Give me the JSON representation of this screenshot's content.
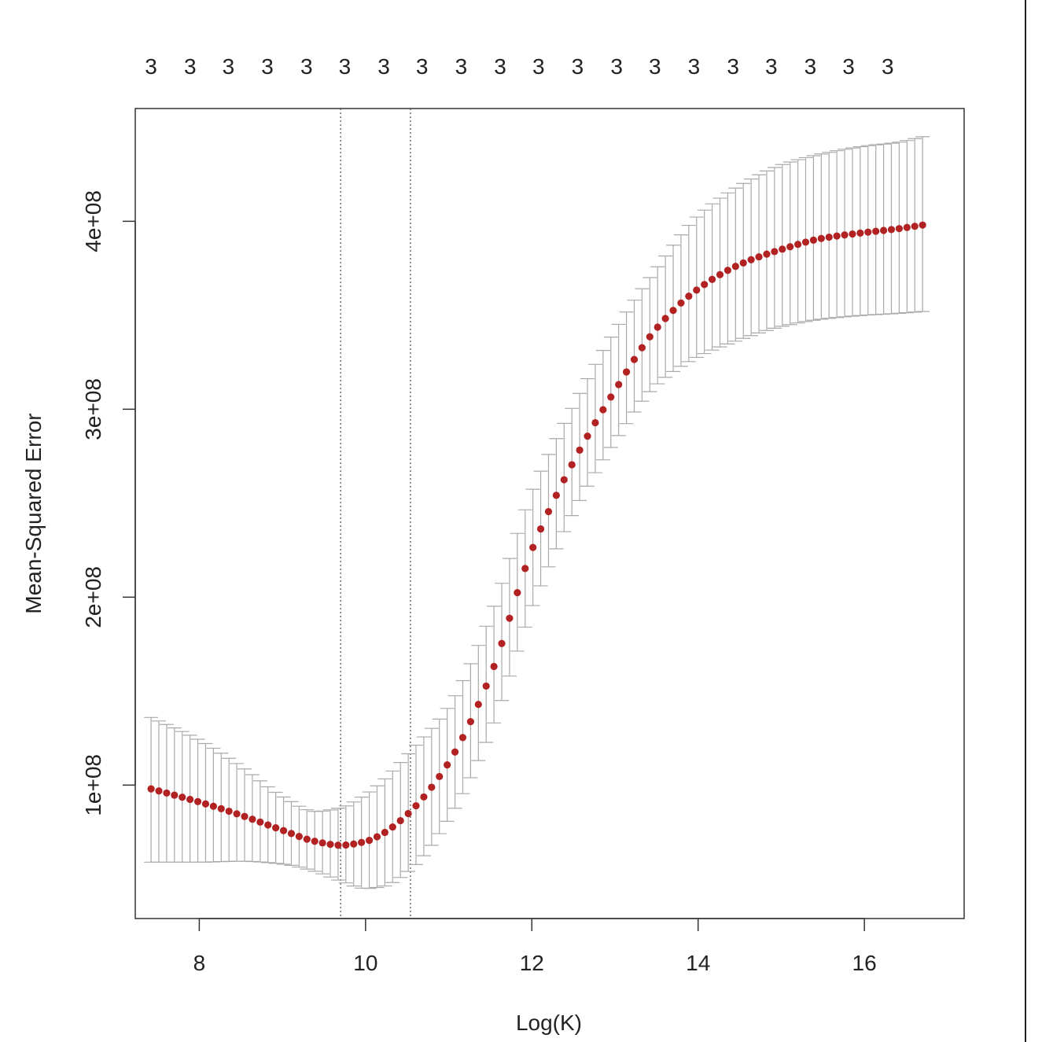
{
  "chart_data": {
    "type": "scatter",
    "title": "",
    "xlabel": "Log(K)",
    "ylabel": "Mean-Squared Error",
    "xlim": [
      7.23,
      17.2
    ],
    "ylim": [
      29000000,
      460000000
    ],
    "x_ticks": [
      8,
      10,
      12,
      14,
      16
    ],
    "x_tick_labels": [
      "8",
      "10",
      "12",
      "14",
      "16"
    ],
    "y_ticks": [
      100000000,
      200000000,
      300000000,
      400000000
    ],
    "y_tick_labels": [
      "1e+08",
      "2e+08",
      "3e+08",
      "4e+08"
    ],
    "top_labels": [
      "3",
      "3",
      "3",
      "3",
      "3",
      "3",
      "3",
      "3",
      "3",
      "3",
      "3",
      "3",
      "3",
      "3",
      "3",
      "3",
      "3",
      "3",
      "3",
      "3"
    ],
    "top_label_x": [
      7.42,
      7.89,
      8.35,
      8.82,
      9.29,
      9.75,
      10.22,
      10.68,
      11.15,
      11.62,
      12.08,
      12.55,
      13.02,
      13.48,
      13.95,
      14.42,
      14.88,
      15.35,
      15.81,
      16.28
    ],
    "vlines": [
      9.7,
      10.54
    ],
    "point_color": "#b22222",
    "errorbar_color": "#a9a9a9",
    "curve_knots": [
      {
        "x": 7.42,
        "mse": 98000000,
        "lo": 59000000,
        "hi": 136000000
      },
      {
        "x": 8.0,
        "mse": 91000000,
        "lo": 59000000,
        "hi": 124000000
      },
      {
        "x": 8.5,
        "mse": 84000000,
        "lo": 59500000,
        "hi": 110000000
      },
      {
        "x": 9.0,
        "mse": 76000000,
        "lo": 58000000,
        "hi": 94000000
      },
      {
        "x": 9.4,
        "mse": 70000000,
        "lo": 54000000,
        "hi": 86000000
      },
      {
        "x": 9.7,
        "mse": 68000000,
        "lo": 49000000,
        "hi": 88000000
      },
      {
        "x": 10.0,
        "mse": 70000000,
        "lo": 45000000,
        "hi": 95000000
      },
      {
        "x": 10.2,
        "mse": 74000000,
        "lo": 46000000,
        "hi": 102000000
      },
      {
        "x": 10.54,
        "mse": 86000000,
        "lo": 55000000,
        "hi": 118000000
      },
      {
        "x": 11.0,
        "mse": 112000000,
        "lo": 82000000,
        "hi": 142000000
      },
      {
        "x": 11.5,
        "mse": 158000000,
        "lo": 128000000,
        "hi": 190000000
      },
      {
        "x": 12.0,
        "mse": 225000000,
        "lo": 194000000,
        "hi": 256000000
      },
      {
        "x": 12.5,
        "mse": 272000000,
        "lo": 245000000,
        "hi": 302000000
      },
      {
        "x": 13.0,
        "mse": 310000000,
        "lo": 283000000,
        "hi": 342000000
      },
      {
        "x": 13.5,
        "mse": 343000000,
        "lo": 313000000,
        "hi": 375000000
      },
      {
        "x": 14.0,
        "mse": 364000000,
        "lo": 328000000,
        "hi": 403000000
      },
      {
        "x": 14.5,
        "mse": 377000000,
        "lo": 337000000,
        "hi": 419000000
      },
      {
        "x": 15.0,
        "mse": 385000000,
        "lo": 344000000,
        "hi": 430000000
      },
      {
        "x": 15.5,
        "mse": 391000000,
        "lo": 348000000,
        "hi": 436000000
      },
      {
        "x": 16.0,
        "mse": 394000000,
        "lo": 350000000,
        "hi": 440000000
      },
      {
        "x": 16.4,
        "mse": 396000000,
        "lo": 351000000,
        "hi": 442000000
      },
      {
        "x": 16.7,
        "mse": 398000000,
        "lo": 352000000,
        "hi": 445000000
      }
    ],
    "n_points": 100
  }
}
